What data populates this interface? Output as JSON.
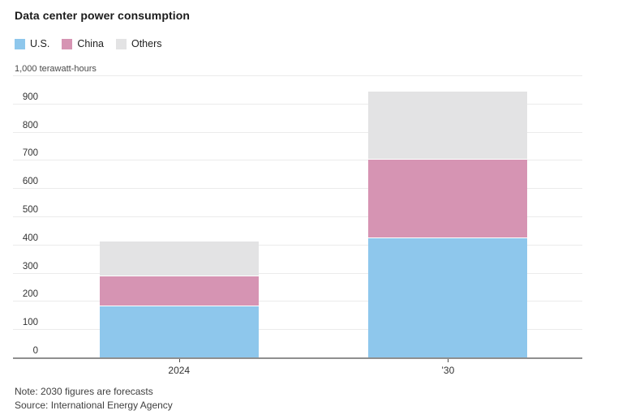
{
  "header": {
    "title": "Data center power consumption"
  },
  "legend": {
    "items": [
      {
        "label": "U.S.",
        "color": "#8ec7ec"
      },
      {
        "label": "China",
        "color": "#d694b3"
      },
      {
        "label": "Others",
        "color": "#e3e3e4"
      }
    ]
  },
  "axis": {
    "unit_label": "1,000 terawatt-hours"
  },
  "footer": {
    "note": "Note: 2030 figures are forecasts",
    "source": "Source: International Energy Agency"
  },
  "chart_data": {
    "type": "bar",
    "stacked": true,
    "title": "Data center power consumption",
    "unit": "terawatt-hours",
    "categories": [
      "2024",
      "’30"
    ],
    "series": [
      {
        "name": "U.S.",
        "color": "#8ec7ec",
        "values": [
          185,
          425
        ]
      },
      {
        "name": "China",
        "color": "#d694b3",
        "values": [
          105,
          280
        ]
      },
      {
        "name": "Others",
        "color": "#e3e3e4",
        "values": [
          125,
          240
        ]
      }
    ],
    "stack_totals": [
      415,
      945
    ],
    "yticks": [
      0,
      100,
      200,
      300,
      400,
      500,
      600,
      700,
      800,
      900,
      1000
    ],
    "ytick_labels": [
      "0",
      "100",
      "200",
      "300",
      "400",
      "500",
      "600",
      "700",
      "800",
      "900",
      "1,000 terawatt-hours"
    ],
    "ylim": [
      0,
      1000
    ],
    "grid": true,
    "legend_position": "top-left",
    "note": "Note: 2030 figures are forecasts",
    "source": "Source: International Energy Agency"
  }
}
